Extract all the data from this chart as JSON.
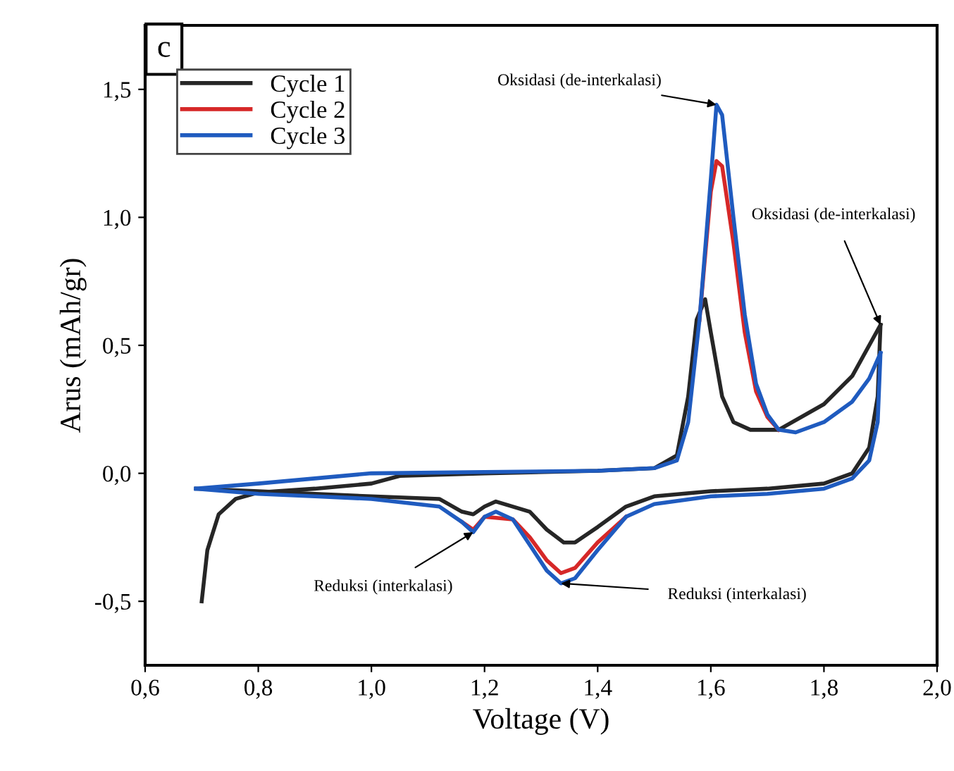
{
  "chart_data": {
    "type": "line",
    "xlabel": "Voltage (V)",
    "ylabel": "Arus (mAh/gr)",
    "legend": "top left",
    "grid": false,
    "line_style": "solid",
    "marker": "none",
    "xlim": [
      0.6,
      2.0
    ],
    "ylim": [
      -0.75,
      1.75
    ],
    "xticks": [
      {
        "value": 0.6,
        "label": "0,6"
      },
      {
        "value": 0.8,
        "label": "0,8"
      },
      {
        "value": 1.0,
        "label": "1,0"
      },
      {
        "value": 1.2,
        "label": "1,2"
      },
      {
        "value": 1.4,
        "label": "1,4"
      },
      {
        "value": 1.6,
        "label": "1,6"
      },
      {
        "value": 1.8,
        "label": "1,8"
      },
      {
        "value": 2.0,
        "label": "2,0"
      }
    ],
    "yticks": [
      {
        "value": -0.5,
        "label": "-0,5"
      },
      {
        "value": 0.0,
        "label": "0,0"
      },
      {
        "value": 0.5,
        "label": "0,5"
      },
      {
        "value": 1.0,
        "label": "1,0"
      },
      {
        "value": 1.5,
        "label": "1,5"
      }
    ],
    "annotations": [
      "c",
      {
        "text": "Oksidasi (de-interkalasi)",
        "x": 1.61,
        "y": 1.44
      },
      {
        "text": "Oksidasi (de-interkalasi)",
        "x": 1.9,
        "y": 0.58
      },
      {
        "text": "Reduksi (interkalasi)",
        "x": 1.18,
        "y": -0.23
      },
      {
        "text": "Reduksi (interkalasi)",
        "x": 1.335,
        "y": -0.43
      }
    ],
    "series": [
      {
        "name": "Cycle 1",
        "color": "#262626",
        "x": [
          0.7,
          0.71,
          0.73,
          0.76,
          0.8,
          0.9,
          1.0,
          1.05,
          1.2,
          1.4,
          1.5,
          1.54,
          1.56,
          1.575,
          1.59,
          1.6,
          1.62,
          1.64,
          1.67,
          1.72,
          1.8,
          1.85,
          1.9
        ],
        "values": [
          -0.5,
          -0.3,
          -0.16,
          -0.1,
          -0.075,
          -0.06,
          -0.04,
          -0.01,
          0.0,
          0.01,
          0.02,
          0.07,
          0.3,
          0.6,
          0.68,
          0.55,
          0.3,
          0.2,
          0.17,
          0.17,
          0.27,
          0.38,
          0.58
        ]
      },
      {
        "color": "#262626",
        "x": [
          1.9,
          1.895,
          1.88,
          1.85,
          1.8,
          1.7,
          1.6,
          1.5,
          1.45,
          1.4,
          1.36,
          1.34,
          1.31,
          1.28,
          1.22,
          1.2,
          1.18,
          1.16,
          1.12,
          1.0,
          0.9,
          0.8,
          0.69
        ],
        "values": [
          0.58,
          0.3,
          0.1,
          0.0,
          -0.04,
          -0.06,
          -0.07,
          -0.09,
          -0.13,
          -0.21,
          -0.27,
          -0.27,
          -0.22,
          -0.15,
          -0.11,
          -0.13,
          -0.16,
          -0.15,
          -0.1,
          -0.09,
          -0.08,
          -0.07,
          -0.06
        ]
      },
      {
        "name": "Cycle 2",
        "color": "#d62828",
        "x": [
          1.58,
          1.6,
          1.61,
          1.62,
          1.64,
          1.66,
          1.68,
          1.7,
          1.72
        ],
        "values": [
          0.6,
          1.1,
          1.22,
          1.2,
          0.9,
          0.55,
          0.32,
          0.22,
          0.17
        ]
      },
      {
        "color": "#d62828",
        "x": [
          1.45,
          1.4,
          1.36,
          1.335,
          1.31,
          1.28,
          1.25,
          1.2,
          1.18,
          1.16
        ],
        "values": [
          -0.17,
          -0.27,
          -0.37,
          -0.39,
          -0.34,
          -0.25,
          -0.18,
          -0.17,
          -0.22,
          -0.19
        ]
      },
      {
        "name": "Cycle 3",
        "color": "#1f5bbf",
        "x": [
          0.69,
          0.8,
          1.0,
          1.2,
          1.4,
          1.5,
          1.54,
          1.56,
          1.58,
          1.6,
          1.61,
          1.62,
          1.64,
          1.66,
          1.68,
          1.7,
          1.72,
          1.75,
          1.8,
          1.85,
          1.88,
          1.9
        ],
        "values": [
          -0.06,
          -0.04,
          0.0,
          0.005,
          0.01,
          0.02,
          0.05,
          0.2,
          0.6,
          1.15,
          1.44,
          1.4,
          1.0,
          0.62,
          0.35,
          0.23,
          0.17,
          0.16,
          0.2,
          0.28,
          0.37,
          0.47
        ]
      },
      {
        "color": "#1f5bbf",
        "x": [
          1.9,
          1.895,
          1.88,
          1.85,
          1.8,
          1.7,
          1.6,
          1.5,
          1.45,
          1.4,
          1.36,
          1.335,
          1.31,
          1.28,
          1.25,
          1.22,
          1.2,
          1.18,
          1.16,
          1.12,
          1.0,
          0.9,
          0.8,
          0.69
        ],
        "values": [
          0.47,
          0.2,
          0.05,
          -0.02,
          -0.06,
          -0.08,
          -0.09,
          -0.12,
          -0.17,
          -0.3,
          -0.41,
          -0.43,
          -0.38,
          -0.28,
          -0.18,
          -0.15,
          -0.17,
          -0.23,
          -0.19,
          -0.13,
          -0.1,
          -0.09,
          -0.08,
          -0.06
        ]
      }
    ]
  }
}
